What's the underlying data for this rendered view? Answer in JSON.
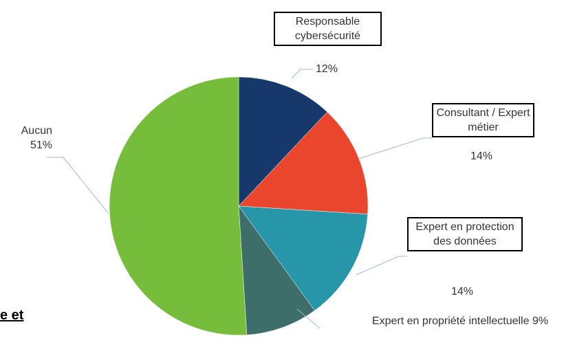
{
  "chart_data": {
    "type": "pie",
    "categories": [
      "Responsable cybersécurité",
      "Consultant / Expert métier",
      "Expert en protection des données",
      "Expert en propriété intellectuelle",
      "Aucun"
    ],
    "values": [
      12,
      14,
      14,
      9,
      51
    ],
    "value_labels": [
      "12%",
      "14%",
      "14%",
      "9%",
      "51%"
    ],
    "colors": [
      "#16386b",
      "#e9462d",
      "#2796a8",
      "#3d6e69",
      "#76bd3c"
    ]
  },
  "document_text": "e et"
}
